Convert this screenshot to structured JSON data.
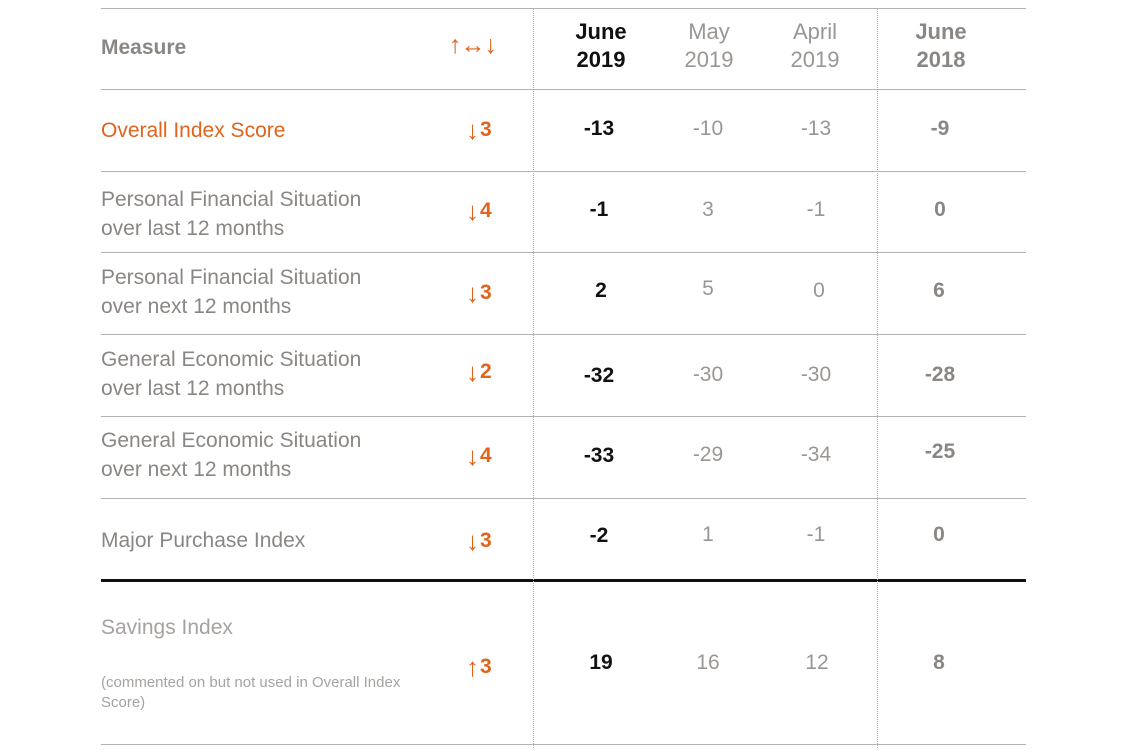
{
  "chart_data": {
    "type": "table",
    "headers": {
      "measure": "Measure",
      "trend": "↑↔↓",
      "columns": [
        {
          "line1": "June",
          "line2": "2019"
        },
        {
          "line1": "May",
          "line2": "2019"
        },
        {
          "line1": "April",
          "line2": "2019"
        },
        {
          "line1": "June",
          "line2": "2018"
        }
      ]
    },
    "rows": [
      {
        "label_lines": [
          "Overall Index Score"
        ],
        "trend_arrow": "↓",
        "trend_value": "3",
        "values": [
          "-13",
          "-10",
          "-13",
          "-9"
        ]
      },
      {
        "label_lines": [
          "Personal Financial Situation",
          "over last 12 months"
        ],
        "trend_arrow": "↓",
        "trend_value": "4",
        "values": [
          "-1",
          "3",
          "-1",
          "0"
        ]
      },
      {
        "label_lines": [
          "Personal Financial Situation",
          "over next 12 months"
        ],
        "trend_arrow": "↓",
        "trend_value": "3",
        "values": [
          "2",
          "5",
          "0",
          "6"
        ]
      },
      {
        "label_lines": [
          "General Economic Situation",
          "over last 12 months"
        ],
        "trend_arrow": "↓",
        "trend_value": "2",
        "values": [
          "-32",
          "-30",
          "-30",
          "-28"
        ]
      },
      {
        "label_lines": [
          "General Economic Situation",
          "over next 12 months"
        ],
        "trend_arrow": "↓",
        "trend_value": "4",
        "values": [
          "-33",
          "-29",
          "-34",
          "-25"
        ]
      },
      {
        "label_lines": [
          "Major Purchase Index"
        ],
        "trend_arrow": "↓",
        "trend_value": "3",
        "values": [
          "-2",
          "1",
          "-1",
          "0"
        ]
      },
      {
        "label_lines": [
          "Savings Index"
        ],
        "note": "(commented on but not used in Overall Index Score)",
        "trend_arrow": "↑",
        "trend_value": "3",
        "values": [
          "19",
          "16",
          "12",
          "8"
        ]
      }
    ]
  },
  "colors": {
    "accent": "#e0641b",
    "current_value": "#111111",
    "muted_text": "#8a8683",
    "prior_value": "#9a9693"
  }
}
